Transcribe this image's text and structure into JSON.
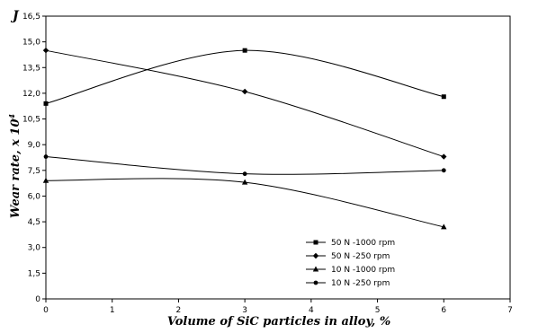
{
  "chart_data": {
    "type": "line",
    "title": "",
    "corner_label": "J",
    "xlabel": "Volume  of  SiC  particles  in  alloy, %",
    "ylabel": "Wear rate, x 10",
    "ylabel_superscript": "4",
    "xlim": [
      0,
      7
    ],
    "ylim": [
      0,
      16.5
    ],
    "x_ticks": [
      "0",
      "1",
      "2",
      "3",
      "4",
      "5",
      "6",
      "7"
    ],
    "y_ticks": [
      "0",
      "1,5",
      "3,0",
      "4,5",
      "6,0",
      "7,5",
      "9,0",
      "10,5",
      "12,0",
      "13,5",
      "15,0",
      "16,5"
    ],
    "grid": false,
    "legend_position": "bottom-right",
    "x": [
      0,
      3,
      6
    ],
    "series": [
      {
        "name": "50 N -1000 rpm",
        "marker": "square",
        "values": [
          11.4,
          14.5,
          11.8
        ]
      },
      {
        "name": "50 N -250 rpm",
        "marker": "diamond",
        "values": [
          14.5,
          12.1,
          8.3
        ]
      },
      {
        "name": "10 N -1000 rpm",
        "marker": "triangle",
        "values": [
          6.9,
          6.8,
          4.2
        ]
      },
      {
        "name": "10 N -250 rpm",
        "marker": "circle",
        "values": [
          8.3,
          7.3,
          7.5
        ]
      }
    ]
  }
}
